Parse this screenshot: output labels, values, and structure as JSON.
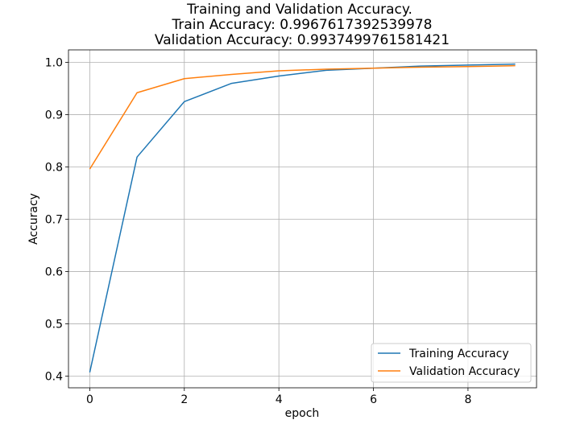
{
  "chart_data": {
    "type": "line",
    "title_lines": [
      "Training and Validation Accuracy.",
      "Train Accuracy: 0.9967617392539978",
      "Validation Accuracy: 0.9937499761581421"
    ],
    "xlabel": "epoch",
    "ylabel": "Accuracy",
    "x": [
      0,
      1,
      2,
      3,
      4,
      5,
      6,
      7,
      8,
      9
    ],
    "xlim": [
      -0.45,
      9.45
    ],
    "ylim": [
      0.3775,
      1.024
    ],
    "xticks": [
      0,
      2,
      4,
      6,
      8
    ],
    "yticks": [
      0.4,
      0.5,
      0.6,
      0.7,
      0.8,
      0.9,
      1.0
    ],
    "xtick_labels": [
      "0",
      "2",
      "4",
      "6",
      "8"
    ],
    "ytick_labels": [
      "0.4",
      "0.5",
      "0.6",
      "0.7",
      "0.8",
      "0.9",
      "1.0"
    ],
    "grid": true,
    "legend_position": "lower-right",
    "series": [
      {
        "name": "Training Accuracy",
        "color": "#1f77b4",
        "values": [
          0.407,
          0.819,
          0.925,
          0.96,
          0.974,
          0.985,
          0.989,
          0.993,
          0.995,
          0.9968
        ]
      },
      {
        "name": "Validation Accuracy",
        "color": "#ff7f0e",
        "values": [
          0.796,
          0.942,
          0.969,
          0.977,
          0.984,
          0.987,
          0.989,
          0.991,
          0.992,
          0.9937
        ]
      }
    ]
  }
}
